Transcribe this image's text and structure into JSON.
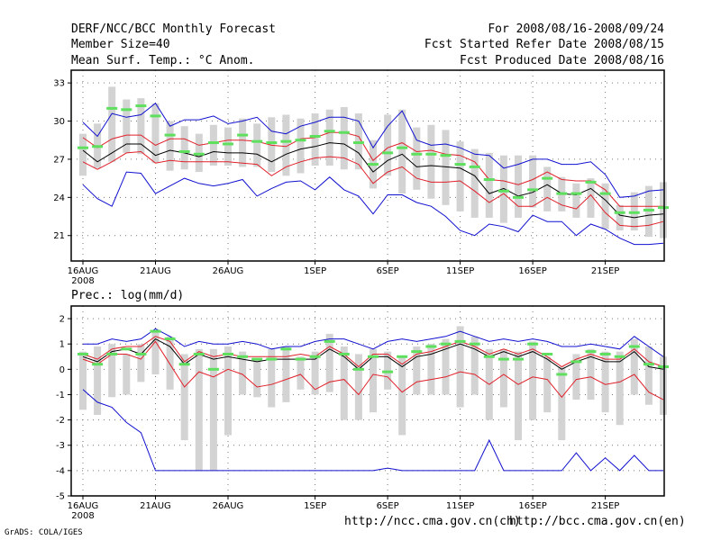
{
  "header": {
    "title": "DERF/NCC/BCC Monthly Forecast",
    "member_size": "Member Size=40",
    "variable": "Mean Surf. Temp.: °C Anom.",
    "forecast_range": "For 2008/08/16-2008/09/24",
    "fcst_started": "Fcst Started Refer Date 2008/08/15",
    "fcst_produced": "Fcst Produced Date 2008/08/16"
  },
  "footer": {
    "ncc_url": "http://ncc.cma.gov.cn(ch)",
    "bcc_url": "http://bcc.cma.gov.cn(en)",
    "grads_credit": "GrADS: COLA/IGES"
  },
  "colors": {
    "bar": "#d3d3d3",
    "ensemble_mean": "#000000",
    "inner_range": "#e0202a",
    "outer_range": "#1010d0",
    "marker": "#5ee05e"
  },
  "chart_data": [
    {
      "type": "line",
      "name": "temperature",
      "title": "",
      "xlabel": "",
      "ylabel": "",
      "ylim": [
        19,
        34
      ],
      "yticks": [
        21,
        24,
        27,
        30,
        33
      ],
      "xticks": [
        {
          "day": 0,
          "label": "16AUG",
          "sub": "2008"
        },
        {
          "day": 5,
          "label": "21AUG",
          "sub": ""
        },
        {
          "day": 10,
          "label": "26AUG",
          "sub": ""
        },
        {
          "day": 16,
          "label": "1SEP",
          "sub": ""
        },
        {
          "day": 21,
          "label": "6SEP",
          "sub": ""
        },
        {
          "day": 26,
          "label": "11SEP",
          "sub": ""
        },
        {
          "day": 31,
          "label": "16SEP",
          "sub": ""
        },
        {
          "day": 36,
          "label": "21SEP",
          "sub": ""
        }
      ],
      "day_count": 40,
      "series": [
        {
          "name": "bar_top",
          "values": [
            29,
            29.8,
            32.7,
            31.7,
            31.8,
            31.4,
            30,
            29.6,
            29,
            29.7,
            29.5,
            30.2,
            29.8,
            30.3,
            30.5,
            30.2,
            30.6,
            30.9,
            31.1,
            30.6,
            28.5,
            30.5,
            30.9,
            29.5,
            29.7,
            29.3,
            28.4,
            27.8,
            27.5,
            27.3,
            27.3,
            27.3,
            26.4,
            25.6,
            25.1,
            25.5,
            25.1,
            23.4,
            24.4,
            24.9,
            25.2
          ]
        },
        {
          "name": "bar_bottom",
          "values": [
            25.7,
            26.3,
            26.8,
            27.5,
            27.4,
            26.7,
            26.1,
            26.2,
            26,
            26.5,
            26.5,
            26.4,
            26.4,
            26,
            25.7,
            25.9,
            26.5,
            26.5,
            26.2,
            26.2,
            24.7,
            25.7,
            24.3,
            24.6,
            23.9,
            23.4,
            22.9,
            22.4,
            22.4,
            22,
            22.4,
            23.2,
            22.9,
            22.9,
            22.4,
            22.4,
            21.5,
            21.4,
            21.4,
            20.9,
            20.8
          ]
        },
        {
          "name": "outer_max",
          "values": [
            29.9,
            28.8,
            30.6,
            30.3,
            30.5,
            31.4,
            29.6,
            30.1,
            30.1,
            30.4,
            29.8,
            30,
            30.3,
            29.2,
            29,
            29.6,
            29.9,
            30.3,
            30.3,
            30,
            27.9,
            29.6,
            30.8,
            28.5,
            28.1,
            28.2,
            27.9,
            27.4,
            27.3,
            26.3,
            26.6,
            27,
            27,
            26.6,
            26.6,
            26.8,
            25.8,
            24,
            24.1,
            24.5,
            24.6
          ]
        },
        {
          "name": "inner_max",
          "values": [
            28.7,
            27.9,
            28.6,
            28.9,
            28.9,
            28.1,
            28.6,
            28.6,
            28.1,
            28.3,
            28.5,
            28.5,
            28.4,
            28.1,
            28,
            28.6,
            28.7,
            29.1,
            29.1,
            28.8,
            26.9,
            27.9,
            28.3,
            27.6,
            27.7,
            27.4,
            27.3,
            26.8,
            25.4,
            25.3,
            25,
            25.4,
            26,
            25.4,
            25.3,
            25.3,
            24.6,
            23.3,
            23.3,
            23.3,
            23.3
          ]
        },
        {
          "name": "mean",
          "values": [
            27.7,
            26.8,
            27.5,
            28.2,
            28.2,
            27.3,
            27.7,
            27.5,
            27.2,
            27.6,
            27.5,
            27.5,
            27.4,
            26.8,
            27.4,
            27.8,
            28,
            28.3,
            28.2,
            27.5,
            26,
            26.9,
            27.4,
            26.4,
            26.5,
            26.4,
            26.3,
            25.7,
            24.3,
            24.7,
            24.1,
            24.4,
            25,
            24.3,
            24.2,
            24.7,
            23.8,
            22.6,
            22.4,
            22.6,
            22.7
          ]
        },
        {
          "name": "inner_min",
          "values": [
            26.8,
            26.2,
            26.8,
            27.5,
            27.6,
            26.7,
            26.9,
            26.8,
            26.8,
            26.8,
            26.8,
            26.7,
            26.6,
            25.7,
            26.4,
            26.8,
            27.1,
            27.2,
            27.1,
            26.6,
            25.1,
            26,
            26.4,
            25.5,
            25.2,
            25.2,
            25.3,
            24.5,
            23.6,
            24.3,
            23.3,
            23.3,
            24,
            23.4,
            23.1,
            24.2,
            22.8,
            21.8,
            21.7,
            21.8,
            22.1
          ]
        },
        {
          "name": "outer_min",
          "values": [
            25,
            23.9,
            23.3,
            26,
            25.9,
            24.3,
            24.9,
            25.5,
            25.1,
            24.9,
            25.1,
            25.4,
            24.1,
            24.7,
            25.2,
            25.3,
            24.6,
            25.6,
            24.6,
            24.1,
            22.7,
            24.2,
            24.2,
            23.6,
            23.3,
            22.5,
            21.4,
            21,
            21.9,
            21.7,
            21.3,
            22.6,
            22.1,
            22.1,
            21,
            21.9,
            21.5,
            20.8,
            20.3,
            20.3,
            20.4
          ]
        },
        {
          "name": "marker",
          "values": [
            27.9,
            28,
            31,
            30.9,
            31.2,
            30.4,
            28.9,
            27.6,
            27.4,
            28.3,
            28.2,
            28.9,
            28.4,
            28.3,
            28.4,
            28.5,
            28.8,
            29.2,
            29.1,
            28.3,
            26.6,
            27.5,
            27.9,
            27.4,
            27.4,
            27.3,
            26.6,
            26.4,
            25.4,
            24.5,
            24,
            24.6,
            25.5,
            24.3,
            24.3,
            25.2,
            24.3,
            22.8,
            22.8,
            23,
            23.2
          ]
        }
      ]
    },
    {
      "type": "line",
      "name": "precipitation",
      "title": "Prec.: log(mm/d)",
      "xlabel": "",
      "ylabel": "",
      "ylim": [
        -5,
        2.5
      ],
      "yticks": [
        -5,
        -4,
        -3,
        -2,
        -1,
        0,
        1,
        2
      ],
      "xticks": [
        {
          "day": 0,
          "label": "16AUG",
          "sub": "2008"
        },
        {
          "day": 5,
          "label": "21AUG",
          "sub": ""
        },
        {
          "day": 10,
          "label": "26AUG",
          "sub": ""
        },
        {
          "day": 16,
          "label": "1SEP",
          "sub": ""
        },
        {
          "day": 21,
          "label": "6SEP",
          "sub": ""
        },
        {
          "day": 26,
          "label": "11SEP",
          "sub": ""
        },
        {
          "day": 31,
          "label": "16SEP",
          "sub": ""
        },
        {
          "day": 36,
          "label": "21SEP",
          "sub": ""
        }
      ],
      "day_count": 40,
      "series": [
        {
          "name": "bar_top",
          "values": [
            0.7,
            0.9,
            1,
            0.6,
            1,
            1.5,
            1.3,
            0.6,
            0.8,
            0.8,
            0.9,
            0.7,
            0.4,
            0.8,
            0.9,
            0.5,
            0.7,
            1.4,
            0.9,
            0.6,
            0.8,
            0.7,
            0.5,
            0.9,
            1,
            1.2,
            1.7,
            1.3,
            0.8,
            0.8,
            0.7,
            1.1,
            0.5,
            0.1,
            0.6,
            0.8,
            0.7,
            0.7,
            1.2,
            0.9,
            0.5
          ]
        },
        {
          "name": "bar_bottom",
          "values": [
            -1.6,
            -1.8,
            -1.1,
            -1,
            -0.5,
            -0.2,
            -0.8,
            -2.8,
            -4,
            -4,
            -2.6,
            -1,
            -1.1,
            -1.5,
            -1.3,
            -0.8,
            -1,
            -0.9,
            -2,
            -2,
            -1.7,
            -0.8,
            -2.6,
            -1,
            -1,
            -1,
            -1.5,
            -1,
            -2,
            -1.5,
            -2.8,
            -2,
            -1.7,
            -2.8,
            -1.2,
            -1.2,
            -1.7,
            -2.2,
            -1,
            -1.4,
            -1.8
          ]
        },
        {
          "name": "outer_max",
          "values": [
            1,
            1,
            1.2,
            1.1,
            1.2,
            1.6,
            1.3,
            0.9,
            1.1,
            1,
            1,
            1.1,
            1,
            0.8,
            0.9,
            0.9,
            1.1,
            1.2,
            1.2,
            1,
            0.8,
            1.1,
            1.2,
            1.1,
            1.2,
            1.3,
            1.5,
            1.3,
            1.1,
            1.2,
            1.1,
            1.2,
            1.1,
            0.9,
            0.9,
            1,
            0.9,
            0.8,
            1.3,
            0.9,
            0.5
          ]
        },
        {
          "name": "inner_max",
          "values": [
            0.6,
            0.4,
            0.8,
            0.9,
            0.9,
            1.3,
            1.1,
            0.3,
            0.7,
            0.5,
            0.6,
            0.5,
            0.5,
            0.5,
            0.5,
            0.6,
            0.5,
            0.9,
            0.6,
            0.1,
            0.6,
            0.6,
            0.2,
            0.6,
            0.7,
            0.9,
            1.1,
            0.9,
            0.6,
            0.8,
            0.6,
            0.8,
            0.5,
            0.1,
            0.4,
            0.6,
            0.4,
            0.4,
            0.8,
            0.3,
            0.1
          ]
        },
        {
          "name": "mean",
          "values": [
            0.5,
            0.3,
            0.7,
            0.8,
            0.6,
            1.2,
            0.9,
            0.2,
            0.6,
            0.4,
            0.5,
            0.4,
            0.3,
            0.4,
            0.4,
            0.4,
            0.4,
            0.8,
            0.5,
            0,
            0.5,
            0.5,
            0.1,
            0.5,
            0.6,
            0.8,
            1,
            0.8,
            0.5,
            0.7,
            0.5,
            0.7,
            0.4,
            0,
            0.3,
            0.5,
            0.3,
            0.3,
            0.7,
            0.1,
            0
          ]
        },
        {
          "name": "inner_min",
          "values": [
            0.4,
            0.2,
            0.6,
            0.6,
            0.4,
            1.1,
            0.2,
            -0.7,
            -0.1,
            -0.3,
            0,
            -0.2,
            -0.7,
            -0.6,
            -0.4,
            -0.2,
            -0.8,
            -0.5,
            -0.4,
            -1,
            -0.2,
            -0.3,
            -0.9,
            -0.5,
            -0.4,
            -0.3,
            -0.1,
            -0.2,
            -0.6,
            -0.2,
            -0.6,
            -0.3,
            -0.4,
            -1.1,
            -0.4,
            -0.3,
            -0.6,
            -0.5,
            -0.2,
            -0.9,
            -1.2
          ]
        },
        {
          "name": "outer_min",
          "values": [
            -0.8,
            -1.3,
            -1.5,
            -2.1,
            -2.5,
            -4,
            -4,
            -4,
            -4,
            -4,
            -4,
            -4,
            -4,
            -4,
            -4,
            -4,
            -4,
            -4,
            -4,
            -4,
            -4,
            -3.9,
            -4,
            -4,
            -4,
            -4,
            -4,
            -4,
            -2.8,
            -4,
            -4,
            -4,
            -4,
            -4,
            -3.3,
            -4,
            -3.5,
            -4,
            -3.4,
            -4,
            -4
          ]
        },
        {
          "name": "marker",
          "values": [
            0.6,
            0.2,
            0.6,
            0.8,
            0.6,
            1.5,
            1.2,
            0.2,
            0.6,
            0,
            0.6,
            0.5,
            0.4,
            0.4,
            0.8,
            0.4,
            0.5,
            1.1,
            0.6,
            0,
            0.5,
            -0.1,
            0.5,
            0.7,
            0.9,
            1,
            1.1,
            1,
            0.5,
            0.4,
            0.4,
            1,
            0.6,
            -0.2,
            0.3,
            0.7,
            0.6,
            0.5,
            0.9,
            0.2,
            0.1
          ]
        }
      ]
    }
  ]
}
